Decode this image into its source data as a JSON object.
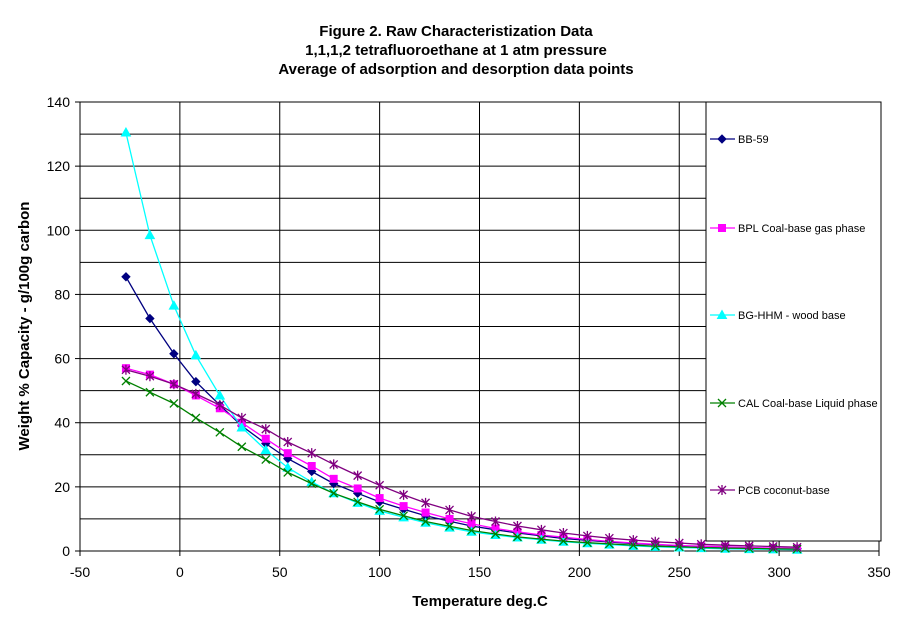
{
  "chart_data": {
    "type": "line",
    "title_lines": [
      "Figure 2. Raw Characteristization Data",
      "1,1,1,2 tetrafluoroethane at 1 atm pressure",
      "Average of adsorption and desorption data points"
    ],
    "xlabel": "Temperature deg.C",
    "ylabel": "Weight % Capacity - g/100g carbon",
    "xlim": [
      -50,
      350
    ],
    "ylim": [
      0,
      140
    ],
    "x_ticks": [
      -50,
      0,
      50,
      100,
      150,
      200,
      250,
      300,
      350
    ],
    "y_ticks": [
      0,
      20,
      40,
      60,
      80,
      100,
      120,
      140
    ],
    "x_gridlines": [
      -50,
      0,
      50,
      100,
      150,
      200,
      250,
      300
    ],
    "y_gridlines": [
      10,
      20,
      30,
      40,
      50,
      60,
      70,
      80,
      90,
      100,
      110,
      120,
      130,
      140
    ],
    "legend_position": "right",
    "series": [
      {
        "name": "BB-59",
        "color": "#000080",
        "marker": "diamond",
        "x": [
          -27,
          -15,
          -3,
          8,
          20,
          31,
          43,
          54,
          66,
          77,
          89,
          100,
          112,
          123,
          135,
          146,
          158,
          169,
          181,
          192,
          204,
          215,
          227,
          238,
          250,
          261,
          273,
          285,
          297,
          309
        ],
        "y": [
          85.5,
          72.5,
          61.5,
          52.8,
          45.5,
          39.0,
          33.5,
          28.8,
          24.8,
          21.0,
          18.0,
          15.3,
          13.0,
          11.0,
          9.3,
          7.8,
          6.6,
          5.6,
          4.7,
          3.9,
          3.3,
          2.8,
          2.3,
          2.0,
          1.6,
          1.4,
          1.2,
          1.0,
          0.8,
          0.7
        ]
      },
      {
        "name": "BPL Coal-base gas phase",
        "color": "#FF00FF",
        "marker": "square",
        "x": [
          -27,
          -15,
          -3,
          8,
          20,
          31,
          43,
          54,
          66,
          77,
          89,
          100,
          112,
          123,
          135,
          146,
          158,
          169,
          181,
          192,
          204,
          215,
          227,
          238,
          250,
          261,
          273,
          285,
          297,
          309
        ],
        "y": [
          57.0,
          55.0,
          52.0,
          48.5,
          44.5,
          40.0,
          35.0,
          30.5,
          26.5,
          22.5,
          19.5,
          16.5,
          14.0,
          12.0,
          10.0,
          8.5,
          7.0,
          6.0,
          5.0,
          4.3,
          3.6,
          3.0,
          2.5,
          2.1,
          1.7,
          1.5,
          1.3,
          1.1,
          0.9,
          0.8
        ]
      },
      {
        "name": "BG-HHM - wood base",
        "color": "#00FFFF",
        "marker": "triangle",
        "x": [
          -27,
          -15,
          -3,
          8,
          20,
          31,
          43,
          54,
          66,
          77,
          89,
          100,
          112,
          123,
          135,
          146,
          158,
          169,
          181,
          192,
          204,
          215,
          227,
          238,
          250,
          261,
          273,
          285,
          297,
          309
        ],
        "y": [
          130.5,
          98.5,
          76.5,
          61.0,
          48.5,
          38.5,
          31.5,
          26.0,
          21.5,
          18.0,
          15.0,
          12.5,
          10.5,
          8.8,
          7.3,
          6.0,
          5.0,
          4.2,
          3.5,
          2.9,
          2.4,
          2.0,
          1.6,
          1.3,
          1.1,
          0.9,
          0.7,
          0.6,
          0.5,
          0.4
        ]
      },
      {
        "name": "CAL Coal-base Liquid phase",
        "color": "#008000",
        "marker": "x",
        "x": [
          -27,
          -15,
          -3,
          8,
          20,
          31,
          43,
          54,
          66,
          77,
          89,
          100,
          112,
          123,
          135,
          146,
          158,
          169,
          181,
          192,
          204,
          215,
          227,
          238,
          250,
          261,
          273,
          285,
          297,
          309
        ],
        "y": [
          53.0,
          49.5,
          46.0,
          41.5,
          37.0,
          32.5,
          28.5,
          24.5,
          21.0,
          18.0,
          15.3,
          13.0,
          11.0,
          9.2,
          7.7,
          6.4,
          5.3,
          4.4,
          3.7,
          3.1,
          2.6,
          2.2,
          1.8,
          1.5,
          1.3,
          1.1,
          0.9,
          0.8,
          0.7,
          0.6
        ]
      },
      {
        "name": "PCB coconut-base",
        "color": "#800080",
        "marker": "asterisk",
        "x": [
          -27,
          -15,
          -3,
          8,
          20,
          31,
          43,
          54,
          66,
          77,
          89,
          100,
          112,
          123,
          135,
          146,
          158,
          169,
          181,
          192,
          204,
          215,
          227,
          238,
          250,
          261,
          273,
          285,
          297,
          309
        ],
        "y": [
          56.5,
          54.5,
          52.0,
          49.0,
          45.5,
          41.5,
          38.0,
          34.0,
          30.5,
          27.0,
          23.5,
          20.5,
          17.5,
          15.0,
          12.8,
          10.8,
          9.2,
          7.8,
          6.6,
          5.6,
          4.7,
          4.0,
          3.4,
          2.9,
          2.5,
          2.1,
          1.8,
          1.6,
          1.4,
          1.2
        ]
      }
    ]
  }
}
